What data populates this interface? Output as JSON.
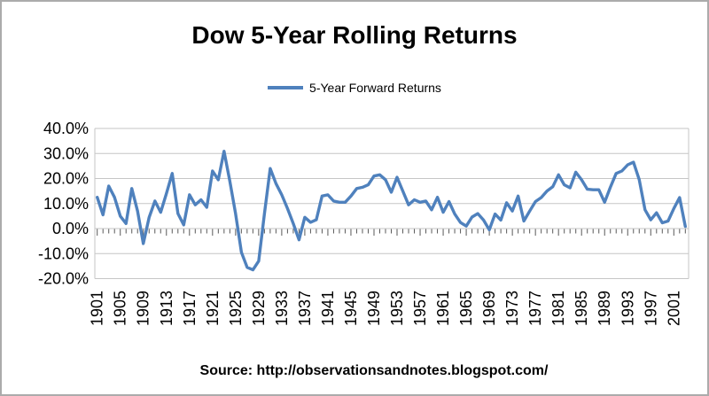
{
  "header": {
    "title": "Dow 5-Year Rolling Returns"
  },
  "legend": {
    "label": "5-Year Forward Returns"
  },
  "footer": {
    "source_text": "Source:  http://observationsandnotes.blogspot.com/"
  },
  "colors": {
    "series_line": "#4F81BD",
    "gridline": "#c6c6c6",
    "tick": "#595959",
    "text": "#000000"
  },
  "chart_data": {
    "type": "line",
    "title": "Dow 5-Year Rolling Returns",
    "legend_entries": [
      "5-Year Forward Returns"
    ],
    "legend_position": "top-center",
    "grid": true,
    "ylim": [
      -20,
      40
    ],
    "x_range": [
      1901,
      2003
    ],
    "y_ticks": [
      {
        "label": "40.0%",
        "value": 40
      },
      {
        "label": "30.0%",
        "value": 30
      },
      {
        "label": "20.0%",
        "value": 20
      },
      {
        "label": "10.0%",
        "value": 10
      },
      {
        "label": "0.0%",
        "value": 0
      },
      {
        "label": "-10.0%",
        "value": -10
      },
      {
        "label": "-20.0%",
        "value": -20
      }
    ],
    "x_tick_labels": [
      "1901",
      "1905",
      "1909",
      "1913",
      "1917",
      "1921",
      "1925",
      "1929",
      "1933",
      "1937",
      "1941",
      "1945",
      "1949",
      "1953",
      "1957",
      "1961",
      "1965",
      "1969",
      "1973",
      "1977",
      "1981",
      "1985",
      "1989",
      "1993",
      "1997",
      "2001"
    ],
    "series": [
      {
        "name": "5-Year Forward Returns",
        "color": "#4F81BD",
        "x_start": 1901,
        "values": [
          12.5,
          5.5,
          17,
          12.5,
          5,
          2,
          16,
          7,
          -6,
          4.5,
          11,
          6.5,
          14,
          22,
          6,
          1.5,
          13.5,
          9.5,
          11.5,
          8.5,
          23,
          19.5,
          30.9,
          19,
          6,
          -9.5,
          -15.5,
          -16.5,
          -13,
          6,
          24,
          18,
          13.5,
          8,
          2,
          -4.5,
          4.5,
          2.5,
          3.5,
          13,
          13.5,
          11,
          10.5,
          10.5,
          13,
          16,
          16.5,
          17.5,
          21,
          21.5,
          19.5,
          14.5,
          20.5,
          15,
          9.5,
          11.5,
          10.5,
          11,
          7.5,
          12.5,
          6.5,
          10.8,
          5.8,
          2.4,
          1,
          4.6,
          6,
          3.4,
          -0.5,
          5.8,
          3.4,
          10.3,
          7,
          13,
          3,
          7,
          10.8,
          12.4,
          15,
          16.7,
          21.5,
          17.5,
          16.3,
          22.5,
          19.5,
          15.7,
          15.5,
          15.5,
          10.5,
          16.5,
          22,
          23,
          25.5,
          26.5,
          19.5,
          7.5,
          3.5,
          6.3,
          2.3,
          3,
          8,
          12.4,
          0.8
        ]
      }
    ]
  }
}
